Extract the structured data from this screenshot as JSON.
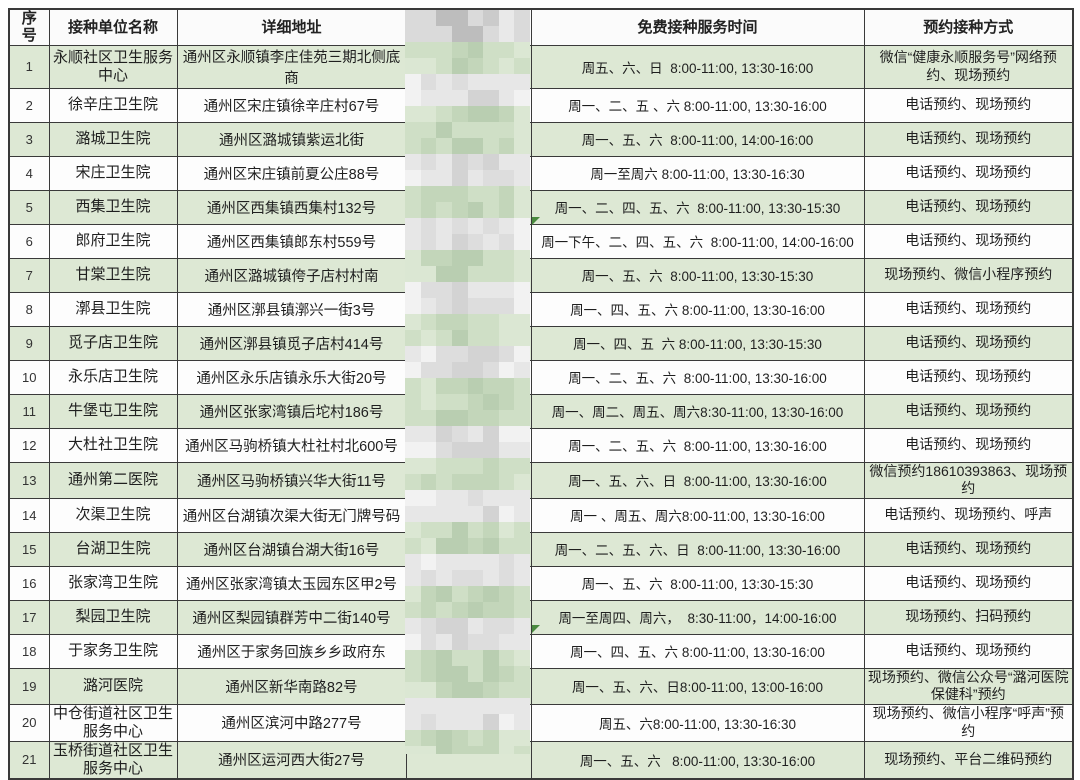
{
  "table": {
    "headers": [
      {
        "label": "序号"
      },
      {
        "label": "接种单位名称"
      },
      {
        "label": "详细地址"
      },
      {
        "label": ""
      },
      {
        "label": "免费接种服务时间"
      },
      {
        "label": "预约接种方式"
      }
    ],
    "redacted_column_index": 3,
    "rows": [
      {
        "no": "1",
        "name": "永顺社区卫生服务中心",
        "address": "通州区永顺镇李庄佳苑三期北侧底商",
        "time": "周五、六、日  8:00-11:00, 13:30-16:00",
        "method": "微信“健康永顺服务号”网络预约、现场预约"
      },
      {
        "no": "2",
        "name": "徐辛庄卫生院",
        "address": "通州区宋庄镇徐辛庄村67号",
        "time": "周一、二、五 、六 8:00-11:00, 13:30-16:00",
        "method": "电话预约、现场预约"
      },
      {
        "no": "3",
        "name": "潞城卫生院",
        "address": "通州区潞城镇紫运北街",
        "time": "周一、五、六  8:00-11:00, 14:00-16:00",
        "method": "电话预约、现场预约"
      },
      {
        "no": "4",
        "name": "宋庄卫生院",
        "address": "通州区宋庄镇前夏公庄88号",
        "time": "周一至周六 8:00-11:00, 13:30-16:30",
        "method": "电话预约、现场预约"
      },
      {
        "no": "5",
        "name": "西集卫生院",
        "address": "通州区西集镇西集村132号",
        "time": "周一、二、四、五、六  8:00-11:00, 13:30-15:30",
        "method": "电话预约、现场预约"
      },
      {
        "no": "6",
        "name": "郎府卫生院",
        "address": "通州区西集镇郎东村559号",
        "time": "周一下午、二、四、五、六  8:00-11:00, 14:00-16:00",
        "method": "电话预约、现场预约"
      },
      {
        "no": "7",
        "name": "甘棠卫生院",
        "address": "通州区潞城镇侉子店村村南",
        "time": "周一、五、六  8:00-11:00, 13:30-15:30",
        "method": "现场预约、微信小程序预约"
      },
      {
        "no": "8",
        "name": "漷县卫生院",
        "address": "通州区漷县镇漷兴一街3号",
        "time": "周一、四、五、六 8:00-11:00, 13:30-16:00",
        "method": "电话预约、现场预约"
      },
      {
        "no": "9",
        "name": "觅子店卫生院",
        "address": "通州区漷县镇觅子店村414号",
        "time": "周一、四、五  六 8:00-11:00, 13:30-15:30",
        "method": "电话预约、现场预约"
      },
      {
        "no": "10",
        "name": "永乐店卫生院",
        "address": "通州区永乐店镇永乐大街20号",
        "time": "周一、二、五、六  8:00-11:00, 13:30-16:00",
        "method": "电话预约、现场预约"
      },
      {
        "no": "11",
        "name": "牛堡屯卫生院",
        "address": "通州区张家湾镇后坨村186号",
        "time": "周一、周二、周五、周六8:30-11:00, 13:30-16:00",
        "method": "电话预约、现场预约"
      },
      {
        "no": "12",
        "name": "大杜社卫生院",
        "address": "通州区马驹桥镇大杜社村北600号",
        "time": "周一、二、五、六  8:00-11:00, 13:30-16:00",
        "method": "电话预约、现场预约"
      },
      {
        "no": "13",
        "name": "通州第二医院",
        "address": "通州区马驹桥镇兴华大街11号",
        "time": "周一、五、六、日  8:00-11:00, 13:30-16:00",
        "method": "微信预约18610393863、现场预约"
      },
      {
        "no": "14",
        "name": "次渠卫生院",
        "address": "通州区台湖镇次渠大街无门牌号码",
        "time": "周一 、周五、周六8:00-11:00, 13:30-16:00",
        "method": "电话预约、现场预约、呼声"
      },
      {
        "no": "15",
        "name": "台湖卫生院",
        "address": "通州区台湖镇台湖大街16号",
        "time": "周一、二、五、六、日  8:00-11:00, 13:30-16:00",
        "method": "电话预约、现场预约"
      },
      {
        "no": "16",
        "name": "张家湾卫生院",
        "address": "通州区张家湾镇太玉园东区甲2号",
        "time": "周一、五、六  8:00-11:00, 13:30-15:30",
        "method": "电话预约、现场预约"
      },
      {
        "no": "17",
        "name": "梨园卫生院",
        "address": "通州区梨园镇群芳中二街140号",
        "time": "周一至周四、周六，  8:30-11:00，14:00-16:00",
        "method": "现场预约、扫码预约"
      },
      {
        "no": "18",
        "name": "于家务卫生院",
        "address": "通州区于家务回族乡乡政府东",
        "time": "周一、四、五、六 8:00-11:00, 13:30-16:00",
        "method": "电话预约、现场预约"
      },
      {
        "no": "19",
        "name": "潞河医院",
        "address": "通州区新华南路82号",
        "time": "周一、五、六、日8:00-11:00, 13:00-16:00",
        "method": "现场预约、微信公众号“潞河医院保健科”预约"
      },
      {
        "no": "20",
        "name": "中仓街道社区卫生服务中心",
        "address": "通州区滨河中路277号",
        "time": "周五、六8:00-11:00, 13:30-16:30",
        "method": "现场预约、微信小程序“呼声”预约"
      },
      {
        "no": "21",
        "name": "玉桥街道社区卫生服务中心",
        "address": "通州区运河西大街27号",
        "time": "周一、五、六   8:00-11:00, 13:30-16:00",
        "method": "现场预约、平台二维码预约"
      }
    ]
  },
  "colors": {
    "row_green": "#dde8d4",
    "row_white": "#fdfdfd",
    "border": "#3a3a3a",
    "text": "#1f1f1f",
    "marker_green": "#4a8a3f"
  },
  "mosaic": {
    "header": [
      "#e9e9e9",
      "#dadada",
      "#cbcbcb",
      "#bdbdbd"
    ],
    "green": [
      "#dbe7d3",
      "#cfdfc6",
      "#c3d6ba",
      "#b9ceb1"
    ],
    "white": [
      "#f2f2f2",
      "#e7e7e7",
      "#dddddd",
      "#d3d3d3"
    ]
  },
  "comment_markers": [
    {
      "row": 6
    },
    {
      "row": 18
    }
  ]
}
